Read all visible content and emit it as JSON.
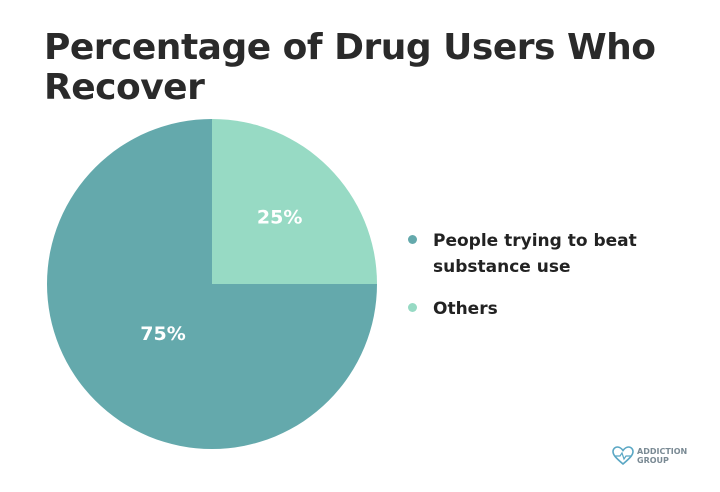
{
  "chart_data": {
    "type": "pie",
    "title": "Percentage of Drug Users Who Recover",
    "slices": [
      {
        "label": "People trying to beat substance use",
        "value": 75,
        "display": "75%",
        "color": "#64a9ac"
      },
      {
        "label": "Others",
        "value": 25,
        "display": "25%",
        "color": "#97dac4"
      }
    ],
    "legend_placement": "right"
  },
  "logo": {
    "line1": "ADDICTION",
    "line2": "GROUP"
  }
}
